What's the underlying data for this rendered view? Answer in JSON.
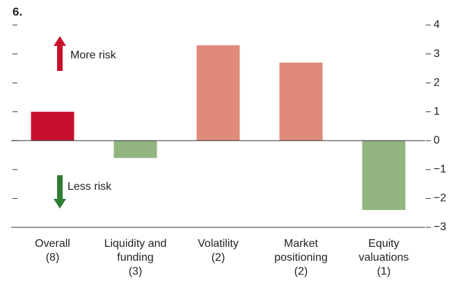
{
  "chart_data": {
    "type": "bar",
    "title": "6.",
    "categories": [
      [
        "Overall",
        "(8)"
      ],
      [
        "Liquidity and",
        "funding",
        "(3)"
      ],
      [
        "Volatility",
        "(2)"
      ],
      [
        "Market",
        "positioning",
        "(2)"
      ],
      [
        "Equity",
        "valuations",
        "(1)"
      ]
    ],
    "values": [
      1.0,
      -0.6,
      3.3,
      2.7,
      -2.4
    ],
    "colors": [
      "#c8102e",
      "#92b57f",
      "#e08a7a",
      "#e08a7a",
      "#92b57f"
    ],
    "ylim": [
      -3,
      4
    ],
    "yticks": [
      4,
      3,
      2,
      1,
      0,
      {
        "value": -1,
        "label": "−1"
      },
      {
        "value": -2,
        "label": "−2"
      },
      {
        "value": -3,
        "label": "−3"
      }
    ],
    "annotations": [
      {
        "text": "More risk",
        "color": "#c8102e"
      },
      {
        "text": "Less risk",
        "color": "#2e7d32"
      }
    ]
  }
}
